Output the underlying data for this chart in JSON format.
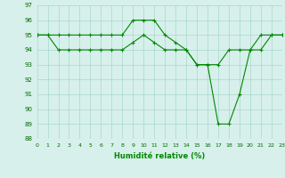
{
  "x": [
    0,
    1,
    2,
    3,
    4,
    5,
    6,
    7,
    8,
    9,
    10,
    11,
    12,
    13,
    14,
    15,
    16,
    17,
    18,
    19,
    20,
    21,
    22,
    23
  ],
  "line1": [
    95,
    95,
    95,
    95,
    95,
    95,
    95,
    95,
    95,
    96,
    96,
    96,
    95,
    94.5,
    94,
    93,
    93,
    89,
    89,
    91,
    94,
    95,
    95,
    95
  ],
  "line2": [
    95,
    95,
    94,
    94,
    94,
    94,
    94,
    94,
    94,
    94.5,
    95,
    94.5,
    94,
    94,
    94,
    93,
    93,
    93,
    94,
    94,
    94,
    94,
    95,
    95
  ],
  "xlabel": "Humidité relative (%)",
  "ylim_min": 88,
  "ylim_max": 97,
  "xlim_min": 0,
  "xlim_max": 23,
  "bg_color": "#d7f0eb",
  "grid_color": "#a8d8cc",
  "line_color": "#008800",
  "tick_color": "#006600"
}
